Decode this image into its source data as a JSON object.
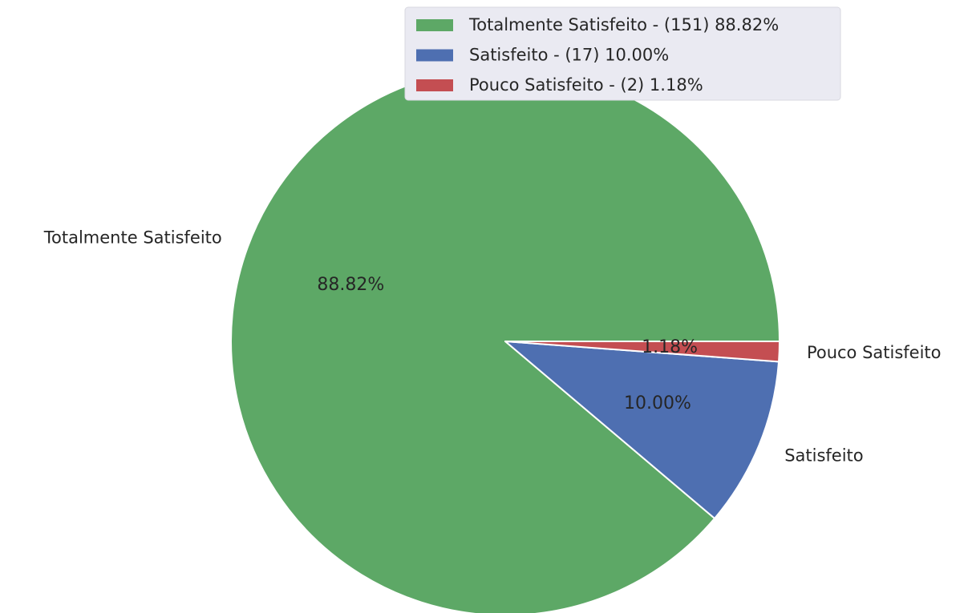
{
  "chart_data": {
    "type": "pie",
    "title": "",
    "slices": [
      {
        "label": "Totalmente Satisfeito",
        "count": 151,
        "percent": 88.82,
        "pct_text": "88.82%",
        "legend_text": "Totalmente Satisfeito - (151) 88.82%",
        "color": "#5da866"
      },
      {
        "label": "Satisfeito",
        "count": 17,
        "percent": 10.0,
        "pct_text": "10.00%",
        "legend_text": "Satisfeito - (17) 10.00%",
        "color": "#4e6fb1"
      },
      {
        "label": "Pouco Satisfeito",
        "count": 2,
        "percent": 1.18,
        "pct_text": "1.18%",
        "legend_text": "Pouco Satisfeito - (2) 1.18%",
        "color": "#c44e52"
      }
    ],
    "start_angle_deg": 0,
    "direction": "counterclockwise",
    "legend_position": "top-right",
    "legend_background": "#eaeaf2",
    "wedge_edge_color": "#ffffff"
  }
}
